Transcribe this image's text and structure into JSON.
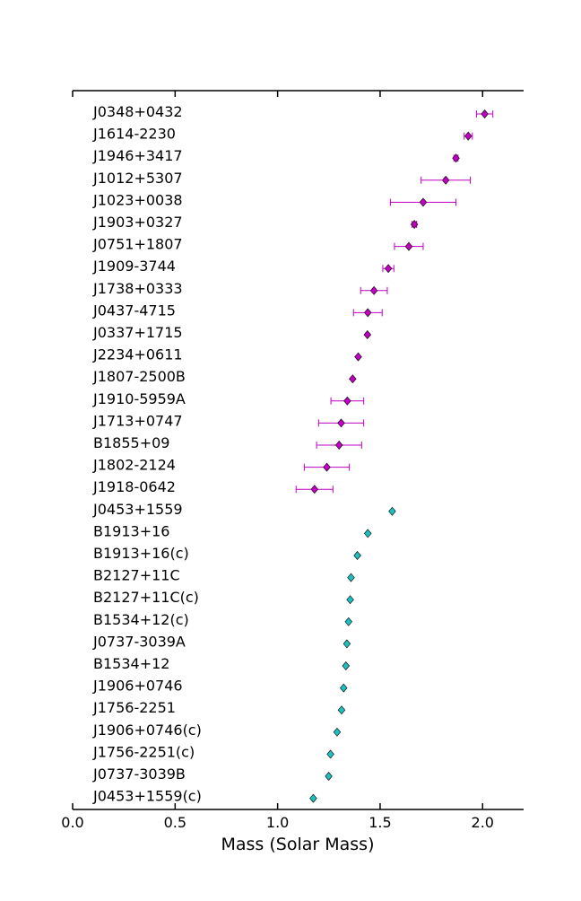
{
  "chart_data": {
    "type": "scatter",
    "xlabel": "Mass (Solar Mass)",
    "xlim": [
      0.0,
      2.2
    ],
    "xticks": [
      0.0,
      0.5,
      1.0,
      1.5,
      2.0
    ],
    "xtick_labels": [
      "0.0",
      "0.5",
      "1.0",
      "1.5",
      "2.0"
    ],
    "grid": false,
    "marker": "diamond",
    "colors": {
      "group1": "#c000c0",
      "group2": "#1fbfbf",
      "edge": "#000000",
      "axis": "#000000"
    },
    "points": [
      {
        "name": "J0348+0432",
        "mass": 2.01,
        "err": 0.04,
        "group": 1
      },
      {
        "name": "J1614-2230",
        "mass": 1.93,
        "err": 0.02,
        "group": 1
      },
      {
        "name": "J1946+3417",
        "mass": 1.87,
        "err": 0.01,
        "group": 1
      },
      {
        "name": "J1012+5307",
        "mass": 1.82,
        "err": 0.12,
        "group": 1
      },
      {
        "name": "J1023+0038",
        "mass": 1.71,
        "err": 0.16,
        "group": 1
      },
      {
        "name": "J1903+0327",
        "mass": 1.667,
        "err": 0.011,
        "group": 1
      },
      {
        "name": "J0751+1807",
        "mass": 1.64,
        "err": 0.07,
        "group": 1
      },
      {
        "name": "J1909-3744",
        "mass": 1.54,
        "err": 0.027,
        "group": 1
      },
      {
        "name": "J1738+0333",
        "mass": 1.47,
        "err": 0.065,
        "group": 1
      },
      {
        "name": "J0437-4715",
        "mass": 1.44,
        "err": 0.07,
        "group": 1
      },
      {
        "name": "J0337+1715",
        "mass": 1.438,
        "err": 0.0,
        "group": 1
      },
      {
        "name": "J2234+0611",
        "mass": 1.393,
        "err": 0.0,
        "group": 1
      },
      {
        "name": "J1807-2500B",
        "mass": 1.366,
        "err": 0.0,
        "group": 1
      },
      {
        "name": "J1910-5959A",
        "mass": 1.34,
        "err": 0.08,
        "group": 1
      },
      {
        "name": "J1713+0747",
        "mass": 1.31,
        "err": 0.11,
        "group": 1
      },
      {
        "name": "B1855+09",
        "mass": 1.3,
        "err": 0.11,
        "group": 1
      },
      {
        "name": "J1802-2124",
        "mass": 1.24,
        "err": 0.11,
        "group": 1
      },
      {
        "name": "J1918-0642",
        "mass": 1.18,
        "err": 0.09,
        "group": 1
      },
      {
        "name": "J0453+1559",
        "mass": 1.559,
        "err": 0.0,
        "group": 2
      },
      {
        "name": "B1913+16",
        "mass": 1.44,
        "err": 0.0,
        "group": 2
      },
      {
        "name": "B1913+16(c)",
        "mass": 1.389,
        "err": 0.0,
        "group": 2
      },
      {
        "name": "B2127+11C",
        "mass": 1.358,
        "err": 0.0,
        "group": 2
      },
      {
        "name": "B2127+11C(c)",
        "mass": 1.354,
        "err": 0.0,
        "group": 2
      },
      {
        "name": "B1534+12(c)",
        "mass": 1.346,
        "err": 0.0,
        "group": 2
      },
      {
        "name": "J0737-3039A",
        "mass": 1.338,
        "err": 0.0,
        "group": 2
      },
      {
        "name": "B1534+12",
        "mass": 1.333,
        "err": 0.0,
        "group": 2
      },
      {
        "name": "J1906+0746",
        "mass": 1.322,
        "err": 0.0,
        "group": 2
      },
      {
        "name": "J1756-2251",
        "mass": 1.312,
        "err": 0.0,
        "group": 2
      },
      {
        "name": "J1906+0746(c)",
        "mass": 1.29,
        "err": 0.0,
        "group": 2
      },
      {
        "name": "J1756-2251(c)",
        "mass": 1.258,
        "err": 0.0,
        "group": 2
      },
      {
        "name": "J0737-3039B",
        "mass": 1.249,
        "err": 0.0,
        "group": 2
      },
      {
        "name": "J0453+1559(c)",
        "mass": 1.174,
        "err": 0.0,
        "group": 2
      }
    ]
  }
}
